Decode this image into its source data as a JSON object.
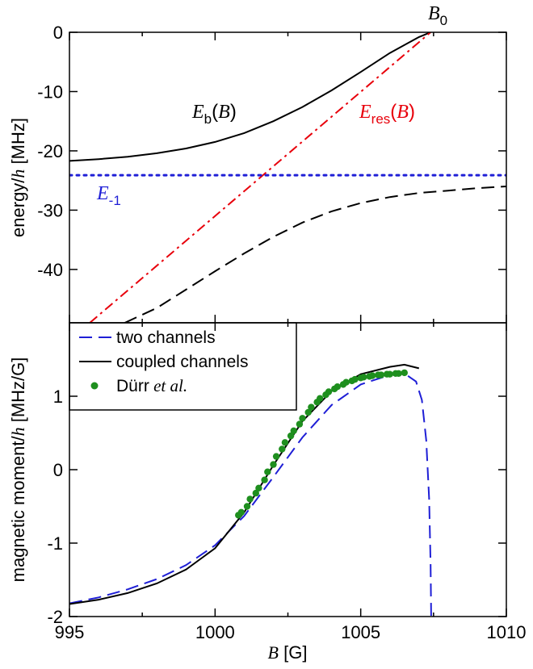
{
  "chart_data": [
    {
      "type": "line",
      "xlim": [
        995,
        1010
      ],
      "ylim": [
        -49,
        0
      ],
      "ylabel": "energy/h [MHz]",
      "ylabel_italic": "h",
      "ylabel_before": "energy/",
      "ylabel_after": " [MHz]",
      "yticks": [
        0,
        -10,
        -20,
        -30,
        -40
      ],
      "ytick_labels": [
        "0",
        "-10",
        "-20",
        "-30",
        "-40"
      ],
      "annotations": {
        "B0": {
          "main": "B",
          "sub": "0"
        },
        "Eb": {
          "main": "E",
          "sub": "b",
          "arg": "(B)",
          "color": "#000000"
        },
        "Eres": {
          "main": "E",
          "sub": "res",
          "arg": "(B)",
          "color": "#e8000b"
        },
        "Em1": {
          "main": "E",
          "sub": "-1",
          "color": "#1f1fd6"
        }
      },
      "series": [
        {
          "key": "Eb",
          "style": "solid",
          "color": "#000000",
          "x": [
            995,
            996,
            997,
            998,
            999,
            1000,
            1001,
            1002,
            1003,
            1004,
            1005,
            1006,
            1007,
            1007.4
          ],
          "y": [
            -21.7,
            -21.4,
            -21.0,
            -20.4,
            -19.6,
            -18.5,
            -17.0,
            -15.0,
            -12.6,
            -9.8,
            -6.7,
            -3.5,
            -0.8,
            0
          ]
        },
        {
          "key": "Eres",
          "style": "dashdot",
          "color": "#e8000b",
          "x": [
            995.7,
            1007.4
          ],
          "y": [
            -49,
            0
          ]
        },
        {
          "key": "Em1",
          "style": "dotted",
          "color": "#1f1fd6",
          "x": [
            995,
            1010
          ],
          "y": [
            -24.1,
            -24.1
          ]
        },
        {
          "key": "lower",
          "style": "dashed",
          "color": "#000000",
          "x": [
            996.9,
            998,
            999,
            1000,
            1001,
            1002,
            1003,
            1004,
            1005,
            1006,
            1007,
            1008,
            1009,
            1010
          ],
          "y": [
            -49,
            -46.5,
            -43.4,
            -40.3,
            -37.3,
            -34.5,
            -32.1,
            -30.2,
            -28.8,
            -27.8,
            -27.1,
            -26.7,
            -26.3,
            -26.0
          ]
        }
      ]
    },
    {
      "type": "line",
      "xlim": [
        995,
        1010
      ],
      "ylim": [
        -2.0,
        2.0
      ],
      "xlabel": "B [G]",
      "xlabel_italic": "B",
      "xlabel_after": " [G]",
      "ylabel": "magnetic moment/h [MHz/G]",
      "ylabel_before": "magnetic moment/",
      "ylabel_italic": "h",
      "ylabel_after": " [MHz/G]",
      "xticks": [
        995,
        1000,
        1005,
        1010
      ],
      "xtick_labels": [
        "995",
        "1000",
        "1005",
        "1010"
      ],
      "yticks": [
        1,
        0,
        -1,
        -2
      ],
      "ytick_labels": [
        "1",
        "0",
        "-1",
        "-2"
      ],
      "legend": {
        "placement": "top-left",
        "entries": [
          {
            "key": "two",
            "label": "two channels"
          },
          {
            "key": "coupled",
            "label": "coupled channels"
          },
          {
            "key": "durr",
            "label_plain": "Dürr",
            "label_italic": " et al."
          }
        ]
      },
      "series": [
        {
          "key": "two",
          "name": "two channels",
          "style": "dashed",
          "color": "#1f1fd6",
          "x": [
            995,
            996,
            997,
            998,
            999,
            1000,
            1001,
            1002,
            1003,
            1004,
            1005,
            1006,
            1006.5,
            1006.9,
            1007.1,
            1007.25,
            1007.35,
            1007.4,
            1007.42
          ],
          "y": [
            -1.82,
            -1.74,
            -1.63,
            -1.49,
            -1.3,
            -1.03,
            -0.63,
            -0.1,
            0.44,
            0.88,
            1.16,
            1.29,
            1.31,
            1.2,
            0.95,
            0.4,
            -0.4,
            -1.3,
            -2.0
          ]
        },
        {
          "key": "coupled",
          "name": "coupled channels",
          "style": "solid",
          "color": "#000000",
          "x": [
            995,
            996,
            997,
            998,
            999,
            1000,
            1001,
            1002,
            1003,
            1004,
            1005,
            1006,
            1006.5,
            1007.0
          ],
          "y": [
            -1.83,
            -1.77,
            -1.68,
            -1.55,
            -1.36,
            -1.07,
            -0.58,
            0.06,
            0.66,
            1.07,
            1.3,
            1.4,
            1.43,
            1.38
          ]
        },
        {
          "key": "durr",
          "name": "Dürr et al.",
          "style": "markers",
          "color": "#1e8f1e",
          "x": [
            1000.8,
            1000.9,
            1001.1,
            1001.2,
            1001.4,
            1001.5,
            1001.7,
            1001.8,
            1002.0,
            1002.1,
            1002.3,
            1002.4,
            1002.6,
            1002.7,
            1002.9,
            1003.0,
            1003.2,
            1003.3,
            1003.5,
            1003.6,
            1003.8,
            1003.9,
            1004.1,
            1004.2,
            1004.4,
            1004.5,
            1004.7,
            1004.8,
            1005.0,
            1005.1,
            1005.3,
            1005.4,
            1005.6,
            1005.7,
            1005.9,
            1006.0,
            1006.2,
            1006.3,
            1006.5
          ],
          "y": [
            -0.62,
            -0.58,
            -0.5,
            -0.4,
            -0.32,
            -0.25,
            -0.14,
            -0.03,
            0.07,
            0.18,
            0.28,
            0.37,
            0.46,
            0.53,
            0.62,
            0.7,
            0.78,
            0.85,
            0.92,
            0.97,
            1.02,
            1.06,
            1.1,
            1.13,
            1.16,
            1.19,
            1.21,
            1.23,
            1.25,
            1.26,
            1.27,
            1.28,
            1.29,
            1.29,
            1.3,
            1.3,
            1.31,
            1.31,
            1.32
          ]
        }
      ]
    }
  ]
}
